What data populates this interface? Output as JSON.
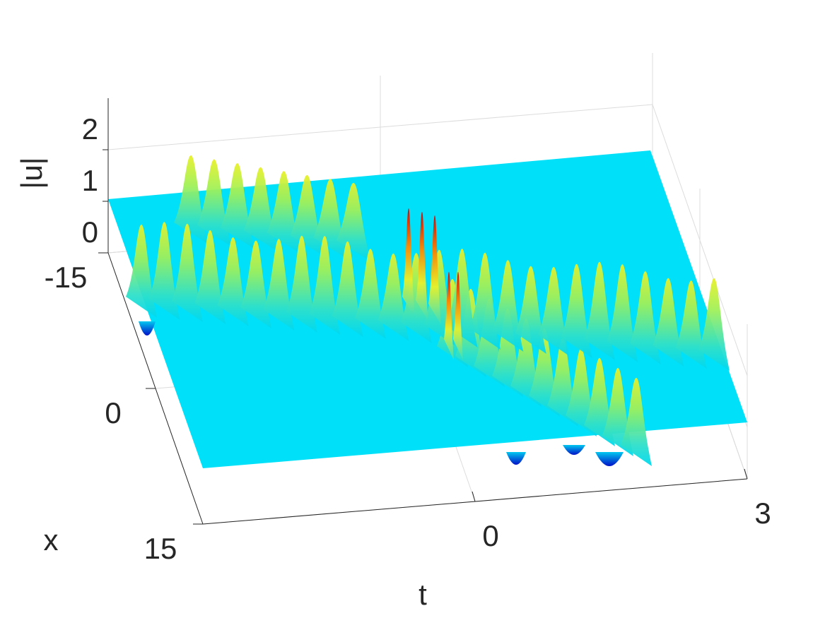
{
  "chart_data": {
    "type": "surface",
    "xlabel": "t",
    "ylabel": "x",
    "zlabel": "|u|",
    "xlim": [
      -3,
      3
    ],
    "xticks": [
      0,
      3
    ],
    "ylim": [
      -15,
      15
    ],
    "yticks": [
      -15,
      0,
      15
    ],
    "zlim": [
      0,
      3
    ],
    "zticks": [
      0,
      1,
      2
    ],
    "grid": true
  }
}
